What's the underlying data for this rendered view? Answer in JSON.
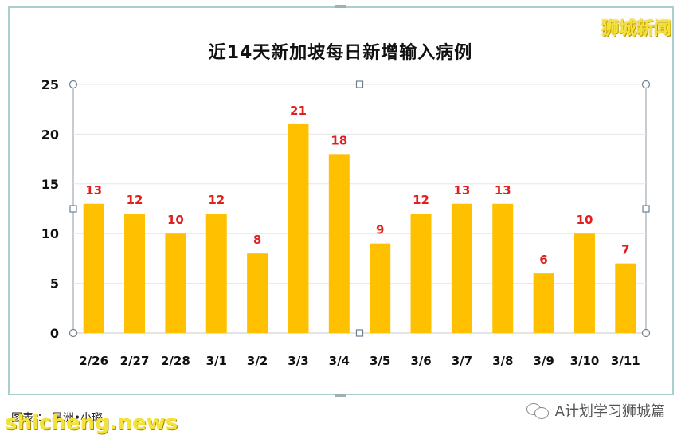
{
  "brand": "狮城新闻",
  "caption": "图表 ：  星洲•小璐",
  "watermark_left": "shicheng.news",
  "watermark_right": "A计划学习狮城篇",
  "chart_data": {
    "type": "bar",
    "title": "近14天新加坡每日新增输入病例",
    "categories": [
      "2/26",
      "2/27",
      "2/28",
      "3/1",
      "3/2",
      "3/3",
      "3/4",
      "3/5",
      "3/6",
      "3/7",
      "3/8",
      "3/9",
      "3/10",
      "3/11"
    ],
    "values": [
      13,
      12,
      10,
      12,
      8,
      21,
      18,
      9,
      12,
      13,
      13,
      6,
      10,
      7
    ],
    "ylim": [
      0,
      25
    ],
    "yticks": [
      0,
      5,
      10,
      15,
      20,
      25
    ],
    "bar_color": "#ffc000",
    "label_color": "#e02020",
    "grid": true
  }
}
